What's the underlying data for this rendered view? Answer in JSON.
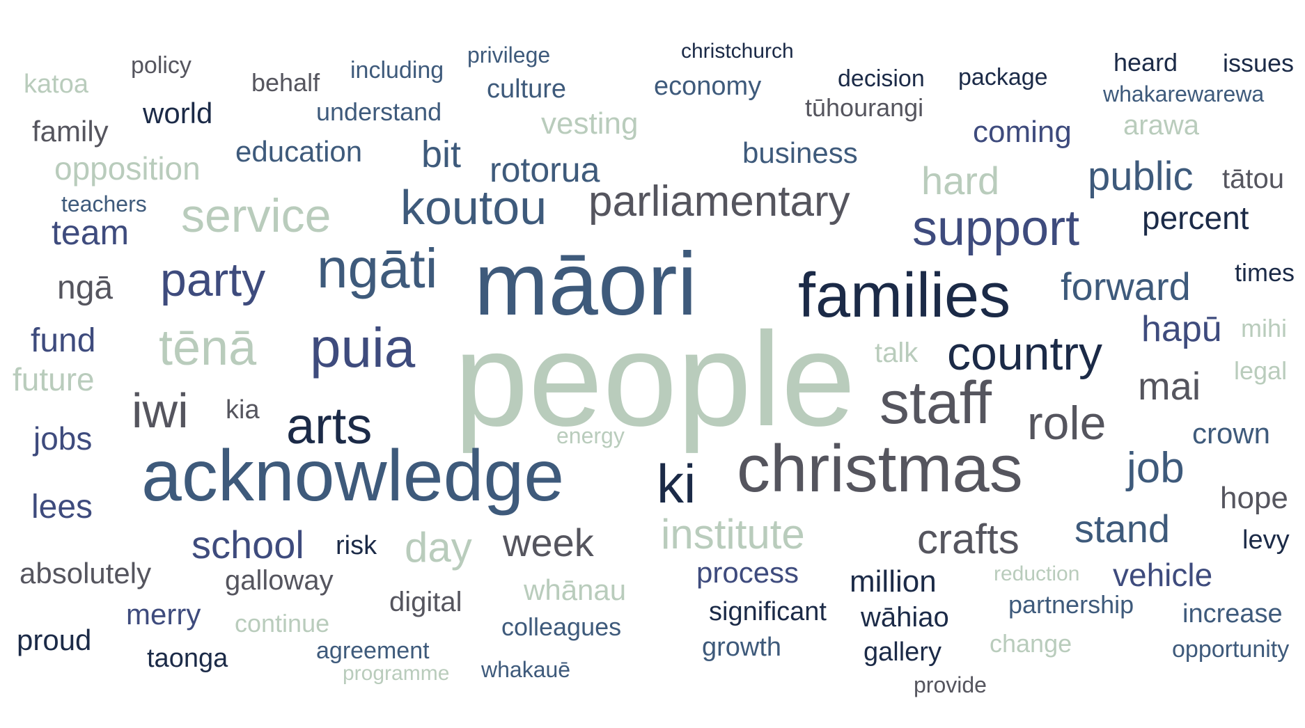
{
  "palette": {
    "sage": "#b9ccbc",
    "slate_blue": "#3e5a7b",
    "navy": "#1b2a47",
    "indigo": "#3e4b7d",
    "charcoal": "#55555e",
    "steel": "#4a6d8c"
  },
  "words": [
    {
      "text": "people",
      "color": "#b9ccbc"
    },
    {
      "text": "māori",
      "color": "#3e5a7b"
    },
    {
      "text": "acknowledge",
      "color": "#3e5a7b"
    },
    {
      "text": "christmas",
      "color": "#55555e"
    },
    {
      "text": "families",
      "color": "#1b2a47"
    },
    {
      "text": "staff",
      "color": "#55555e"
    },
    {
      "text": "ngāti",
      "color": "#3e5a7b"
    },
    {
      "text": "puia",
      "color": "#3e4b7d"
    },
    {
      "text": "country",
      "color": "#1b2a47"
    },
    {
      "text": "support",
      "color": "#3e4b7d"
    },
    {
      "text": "parliamentary",
      "color": "#55555e"
    },
    {
      "text": "koutou",
      "color": "#3e5a7b"
    },
    {
      "text": "service",
      "color": "#b9ccbc"
    },
    {
      "text": "arts",
      "color": "#1b2a47"
    },
    {
      "text": "iwi",
      "color": "#55555e"
    },
    {
      "text": "party",
      "color": "#3e4b7d"
    },
    {
      "text": "tēnā",
      "color": "#b9ccbc"
    },
    {
      "text": "role",
      "color": "#55555e"
    },
    {
      "text": "ki",
      "color": "#1b2a47"
    },
    {
      "text": "institute",
      "color": "#b9ccbc"
    },
    {
      "text": "crafts",
      "color": "#55555e"
    },
    {
      "text": "day",
      "color": "#b9ccbc"
    },
    {
      "text": "week",
      "color": "#55555e"
    },
    {
      "text": "school",
      "color": "#3e4b7d"
    },
    {
      "text": "stand",
      "color": "#3e5a7b"
    },
    {
      "text": "job",
      "color": "#3e5a7b"
    },
    {
      "text": "forward",
      "color": "#3e5a7b"
    },
    {
      "text": "public",
      "color": "#3e5a7b"
    },
    {
      "text": "hapū",
      "color": "#3e4b7d"
    },
    {
      "text": "mai",
      "color": "#55555e"
    },
    {
      "text": "hard",
      "color": "#b9ccbc"
    },
    {
      "text": "percent",
      "color": "#1b2a47"
    },
    {
      "text": "team",
      "color": "#3e4b7d"
    },
    {
      "text": "ngā",
      "color": "#55555e"
    },
    {
      "text": "rotorua",
      "color": "#3e5a7b"
    },
    {
      "text": "bit",
      "color": "#3e5a7b"
    },
    {
      "text": "business",
      "color": "#3e5a7b"
    },
    {
      "text": "opposition",
      "color": "#b9ccbc"
    },
    {
      "text": "education",
      "color": "#3e5a7b"
    },
    {
      "text": "fund",
      "color": "#3e4b7d"
    },
    {
      "text": "future",
      "color": "#b9ccbc"
    },
    {
      "text": "jobs",
      "color": "#3e4b7d"
    },
    {
      "text": "lees",
      "color": "#3e4b7d"
    },
    {
      "text": "crown",
      "color": "#3e5a7b"
    },
    {
      "text": "hope",
      "color": "#55555e"
    },
    {
      "text": "vehicle",
      "color": "#3e4b7d"
    },
    {
      "text": "million",
      "color": "#1b2a47"
    },
    {
      "text": "process",
      "color": "#3e4b7d"
    },
    {
      "text": "whānau",
      "color": "#b9ccbc"
    },
    {
      "text": "vesting",
      "color": "#b9ccbc"
    },
    {
      "text": "coming",
      "color": "#3e4b7d"
    },
    {
      "text": "world",
      "color": "#1b2a47"
    },
    {
      "text": "family",
      "color": "#55555e"
    },
    {
      "text": "merry",
      "color": "#3e4b7d"
    },
    {
      "text": "absolutely",
      "color": "#55555e"
    },
    {
      "text": "proud",
      "color": "#1b2a47"
    },
    {
      "text": "galloway",
      "color": "#55555e"
    },
    {
      "text": "digital",
      "color": "#55555e"
    },
    {
      "text": "wāhiao",
      "color": "#1b2a47"
    },
    {
      "text": "significant",
      "color": "#1b2a47"
    },
    {
      "text": "growth",
      "color": "#3e5a7b"
    },
    {
      "text": "gallery",
      "color": "#1b2a47"
    },
    {
      "text": "increase",
      "color": "#3e5a7b"
    },
    {
      "text": "partnership",
      "color": "#3e5a7b"
    },
    {
      "text": "culture",
      "color": "#3e5a7b"
    },
    {
      "text": "economy",
      "color": "#3e5a7b"
    },
    {
      "text": "understand",
      "color": "#3e5a7b"
    },
    {
      "text": "tūhourangi",
      "color": "#55555e"
    },
    {
      "text": "arawa",
      "color": "#b9ccbc"
    },
    {
      "text": "tātou",
      "color": "#55555e"
    },
    {
      "text": "times",
      "color": "#1b2a47"
    },
    {
      "text": "talk",
      "color": "#b9ccbc"
    },
    {
      "text": "mihi",
      "color": "#b9ccbc"
    },
    {
      "text": "legal",
      "color": "#b9ccbc"
    },
    {
      "text": "kia",
      "color": "#55555e"
    },
    {
      "text": "risk",
      "color": "#1b2a47"
    },
    {
      "text": "levy",
      "color": "#1b2a47"
    },
    {
      "text": "colleagues",
      "color": "#3e5a7b"
    },
    {
      "text": "continue",
      "color": "#b9ccbc"
    },
    {
      "text": "agreement",
      "color": "#3e5a7b"
    },
    {
      "text": "taonga",
      "color": "#1b2a47"
    },
    {
      "text": "change",
      "color": "#b9ccbc"
    },
    {
      "text": "opportunity",
      "color": "#3e5a7b"
    },
    {
      "text": "decision",
      "color": "#1b2a47"
    },
    {
      "text": "package",
      "color": "#1b2a47"
    },
    {
      "text": "heard",
      "color": "#1b2a47"
    },
    {
      "text": "issues",
      "color": "#1b2a47"
    },
    {
      "text": "whakarewarewa",
      "color": "#3e5a7b"
    },
    {
      "text": "katoa",
      "color": "#b9ccbc"
    },
    {
      "text": "policy",
      "color": "#55555e"
    },
    {
      "text": "behalf",
      "color": "#55555e"
    },
    {
      "text": "including",
      "color": "#3e5a7b"
    },
    {
      "text": "privilege",
      "color": "#3e5a7b"
    },
    {
      "text": "christchurch",
      "color": "#1b2a47"
    },
    {
      "text": "teachers",
      "color": "#3e5a7b"
    },
    {
      "text": "energy",
      "color": "#b9ccbc"
    },
    {
      "text": "reduction",
      "color": "#b9ccbc"
    },
    {
      "text": "programme",
      "color": "#b9ccbc"
    },
    {
      "text": "whakauē",
      "color": "#3e5a7b"
    },
    {
      "text": "provide",
      "color": "#55555e"
    }
  ]
}
